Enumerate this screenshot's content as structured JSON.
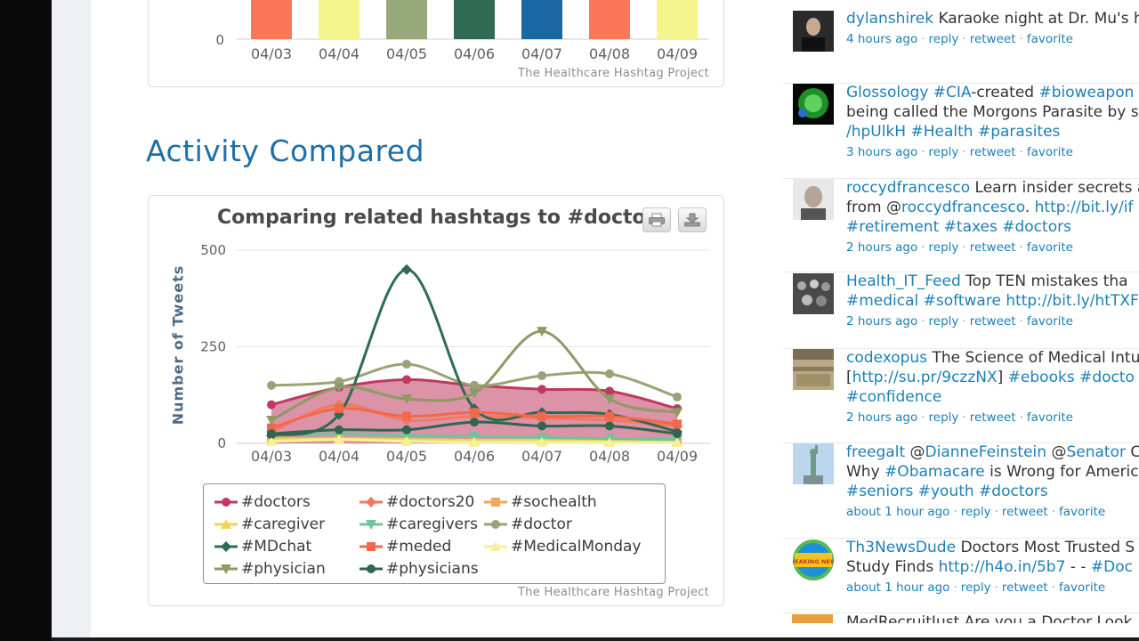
{
  "bar_chart": {
    "categories": [
      "04/03",
      "04/04",
      "04/05",
      "04/06",
      "04/07",
      "04/08",
      "04/09"
    ],
    "bar_colors": [
      "#fb7757",
      "#f4f48d",
      "#97a97a",
      "#2e6b52",
      "#1967a3",
      "#fb7757",
      "#f4f48d"
    ],
    "y_tick": "0",
    "credit": "The Healthcare Hashtag Project"
  },
  "section": {
    "title": "Activity Compared"
  },
  "compare_chart": {
    "title": "Comparing related hashtags to #doctors",
    "credit": "The Healthcare Hashtag Project",
    "print_icon": "printer-icon",
    "download_icon": "download-icon"
  },
  "chart_data": [
    {
      "type": "bar",
      "categories": [
        "04/03",
        "04/04",
        "04/05",
        "04/06",
        "04/07",
        "04/08",
        "04/09"
      ],
      "colors": [
        "#fb7757",
        "#f4f48d",
        "#97a97a",
        "#2e6b52",
        "#1967a3",
        "#fb7757",
        "#f4f48d"
      ],
      "yticks": [
        "0"
      ],
      "credit": "The Healthcare Hashtag Project"
    },
    {
      "type": "area",
      "title": "Comparing related hashtags to #doctors",
      "ylabel": "Number of Tweets",
      "xlabel": "",
      "ylim": [
        0,
        500
      ],
      "yticks": [
        "0",
        "250",
        "500"
      ],
      "categories": [
        "04/03",
        "04/04",
        "04/05",
        "04/06",
        "04/07",
        "04/08",
        "04/09"
      ],
      "grid": true,
      "legend_position": "bottom",
      "credit": "The Healthcare Hashtag Project",
      "series": [
        {
          "name": "#doctors",
          "marker": "circle",
          "color": "#c0395e",
          "fill": true,
          "values": [
            100,
            145,
            165,
            150,
            140,
            135,
            90
          ]
        },
        {
          "name": "#doctors20",
          "marker": "diamond",
          "color": "#f07a5e",
          "values": [
            30,
            100,
            60,
            70,
            65,
            60,
            45
          ]
        },
        {
          "name": "#sochealth",
          "marker": "square",
          "color": "#f2a65a",
          "values": [
            15,
            10,
            8,
            6,
            5,
            5,
            4
          ]
        },
        {
          "name": "#caregiver",
          "marker": "triangle",
          "color": "#f2d35a",
          "values": [
            10,
            12,
            10,
            8,
            8,
            6,
            5
          ]
        },
        {
          "name": "#caregivers",
          "marker": "triangle-down",
          "color": "#6cc59b",
          "values": [
            20,
            25,
            20,
            18,
            15,
            12,
            10
          ]
        },
        {
          "name": "#doctor",
          "marker": "circle",
          "color": "#9aa375",
          "values": [
            150,
            160,
            205,
            150,
            175,
            180,
            120
          ]
        },
        {
          "name": "#MDchat",
          "marker": "diamond",
          "color": "#2d6b52",
          "values": [
            20,
            75,
            450,
            90,
            80,
            75,
            30
          ]
        },
        {
          "name": "#meded",
          "marker": "square",
          "color": "#f4674b",
          "values": [
            40,
            90,
            70,
            80,
            70,
            70,
            50
          ]
        },
        {
          "name": "#MedicalMonday",
          "marker": "triangle",
          "color": "#f7f09a",
          "values": [
            5,
            10,
            5,
            3,
            3,
            2,
            2
          ]
        },
        {
          "name": "#physician",
          "marker": "triangle-down",
          "color": "#8e9a64",
          "values": [
            60,
            145,
            115,
            130,
            290,
            115,
            80
          ]
        },
        {
          "name": "#physicians",
          "marker": "circle",
          "color": "#2e6650",
          "values": [
            25,
            35,
            35,
            55,
            45,
            45,
            25
          ]
        }
      ]
    }
  ],
  "feed": {
    "items": [
      {
        "avatar_icon": "avatar-man-dark",
        "user": "dylanshirek",
        "lines": [
          [
            {
              "t": "Karaoke night at Dr. Mu's h",
              "c": "text"
            }
          ]
        ],
        "meta": {
          "time": "4 hours ago",
          "reply": "reply",
          "retweet": "retweet",
          "favorite": "favorite"
        }
      },
      {
        "avatar_icon": "avatar-green-globe",
        "user": "Glossology",
        "lines": [
          [
            {
              "t": "#CIA",
              "c": "tag"
            },
            {
              "t": "-created ",
              "c": "text"
            },
            {
              "t": "#bioweapon",
              "c": "tag"
            }
          ],
          [
            {
              "t": "being called the Morgons Parasite by so",
              "c": "text"
            }
          ],
          [
            {
              "t": "/hpUlkH ",
              "c": "tag"
            },
            {
              "t": "#Health ",
              "c": "tag"
            },
            {
              "t": "#parasites",
              "c": "tag"
            }
          ]
        ],
        "meta": {
          "time": "3 hours ago",
          "reply": "reply",
          "retweet": "retweet",
          "favorite": "favorite"
        }
      },
      {
        "avatar_icon": "avatar-man-gray",
        "user": "roccydfrancesco",
        "lines": [
          [
            {
              "t": "Learn insider secrets a",
              "c": "text"
            }
          ],
          [
            {
              "t": "from @",
              "c": "text"
            },
            {
              "t": "roccydfrancesco",
              "c": "tag"
            },
            {
              "t": ". ",
              "c": "text"
            },
            {
              "t": "http://bit.ly/if",
              "c": "tag"
            }
          ],
          [
            {
              "t": "#retirement ",
              "c": "tag"
            },
            {
              "t": "#taxes ",
              "c": "tag"
            },
            {
              "t": "#doctors",
              "c": "tag"
            }
          ]
        ],
        "meta": {
          "time": "2 hours ago",
          "reply": "reply",
          "retweet": "retweet",
          "favorite": "favorite"
        }
      },
      {
        "avatar_icon": "avatar-crowd",
        "user": "Health_IT_Feed",
        "lines": [
          [
            {
              "t": "Top TEN mistakes tha",
              "c": "text"
            }
          ],
          [
            {
              "t": "#medical ",
              "c": "tag"
            },
            {
              "t": "#software ",
              "c": "tag"
            },
            {
              "t": "http://bit.ly/htTXF",
              "c": "tag"
            }
          ]
        ],
        "meta": {
          "time": "2 hours ago",
          "reply": "reply",
          "retweet": "retweet",
          "favorite": "favorite"
        }
      },
      {
        "avatar_icon": "avatar-library",
        "user": "codexopus",
        "lines": [
          [
            {
              "t": "The Science of Medical Intu",
              "c": "text"
            }
          ],
          [
            {
              "t": "[",
              "c": "text"
            },
            {
              "t": "http://su.pr/9czzNX",
              "c": "tag"
            },
            {
              "t": "] ",
              "c": "text"
            },
            {
              "t": "#ebooks ",
              "c": "tag"
            },
            {
              "t": "#docto",
              "c": "tag"
            }
          ],
          [
            {
              "t": "#confidence",
              "c": "tag"
            }
          ]
        ],
        "meta": {
          "time": "2 hours ago",
          "reply": "reply",
          "retweet": "retweet",
          "favorite": "favorite"
        }
      },
      {
        "avatar_icon": "avatar-statue",
        "user": "freegalt",
        "lines": [
          [
            {
              "t": "@",
              "c": "text"
            },
            {
              "t": "DianneFeinstein",
              "c": "tag"
            },
            {
              "t": " @",
              "c": "text"
            },
            {
              "t": "Senator",
              "c": "tag"
            },
            {
              "t": " Ca",
              "c": "text"
            }
          ],
          [
            {
              "t": "Why ",
              "c": "text"
            },
            {
              "t": "#Obamacare",
              "c": "tag"
            },
            {
              "t": " is Wrong for America",
              "c": "text"
            }
          ],
          [
            {
              "t": "#seniors ",
              "c": "tag"
            },
            {
              "t": "#youth ",
              "c": "tag"
            },
            {
              "t": "#doctors",
              "c": "tag"
            }
          ]
        ],
        "meta": {
          "time": "about 1 hour ago",
          "reply": "reply",
          "retweet": "retweet",
          "favorite": "favorite"
        }
      },
      {
        "avatar_icon": "avatar-breaking-news",
        "user": "Th3NewsDude",
        "lines": [
          [
            {
              "t": "Doctors Most Trusted S",
              "c": "text"
            }
          ],
          [
            {
              "t": "Study Finds ",
              "c": "text"
            },
            {
              "t": "http://h4o.in/5b7",
              "c": "tag"
            },
            {
              "t": " - - ",
              "c": "text"
            },
            {
              "t": "#Doc",
              "c": "tag"
            }
          ]
        ],
        "meta": {
          "time": "about 1 hour ago",
          "reply": "reply",
          "retweet": "retweet",
          "favorite": "favorite"
        }
      }
    ],
    "partial_item_text": "MedRecruitJust Are you a Doctor Look",
    "avatar_badge_text": "BREAKING NEWS"
  }
}
